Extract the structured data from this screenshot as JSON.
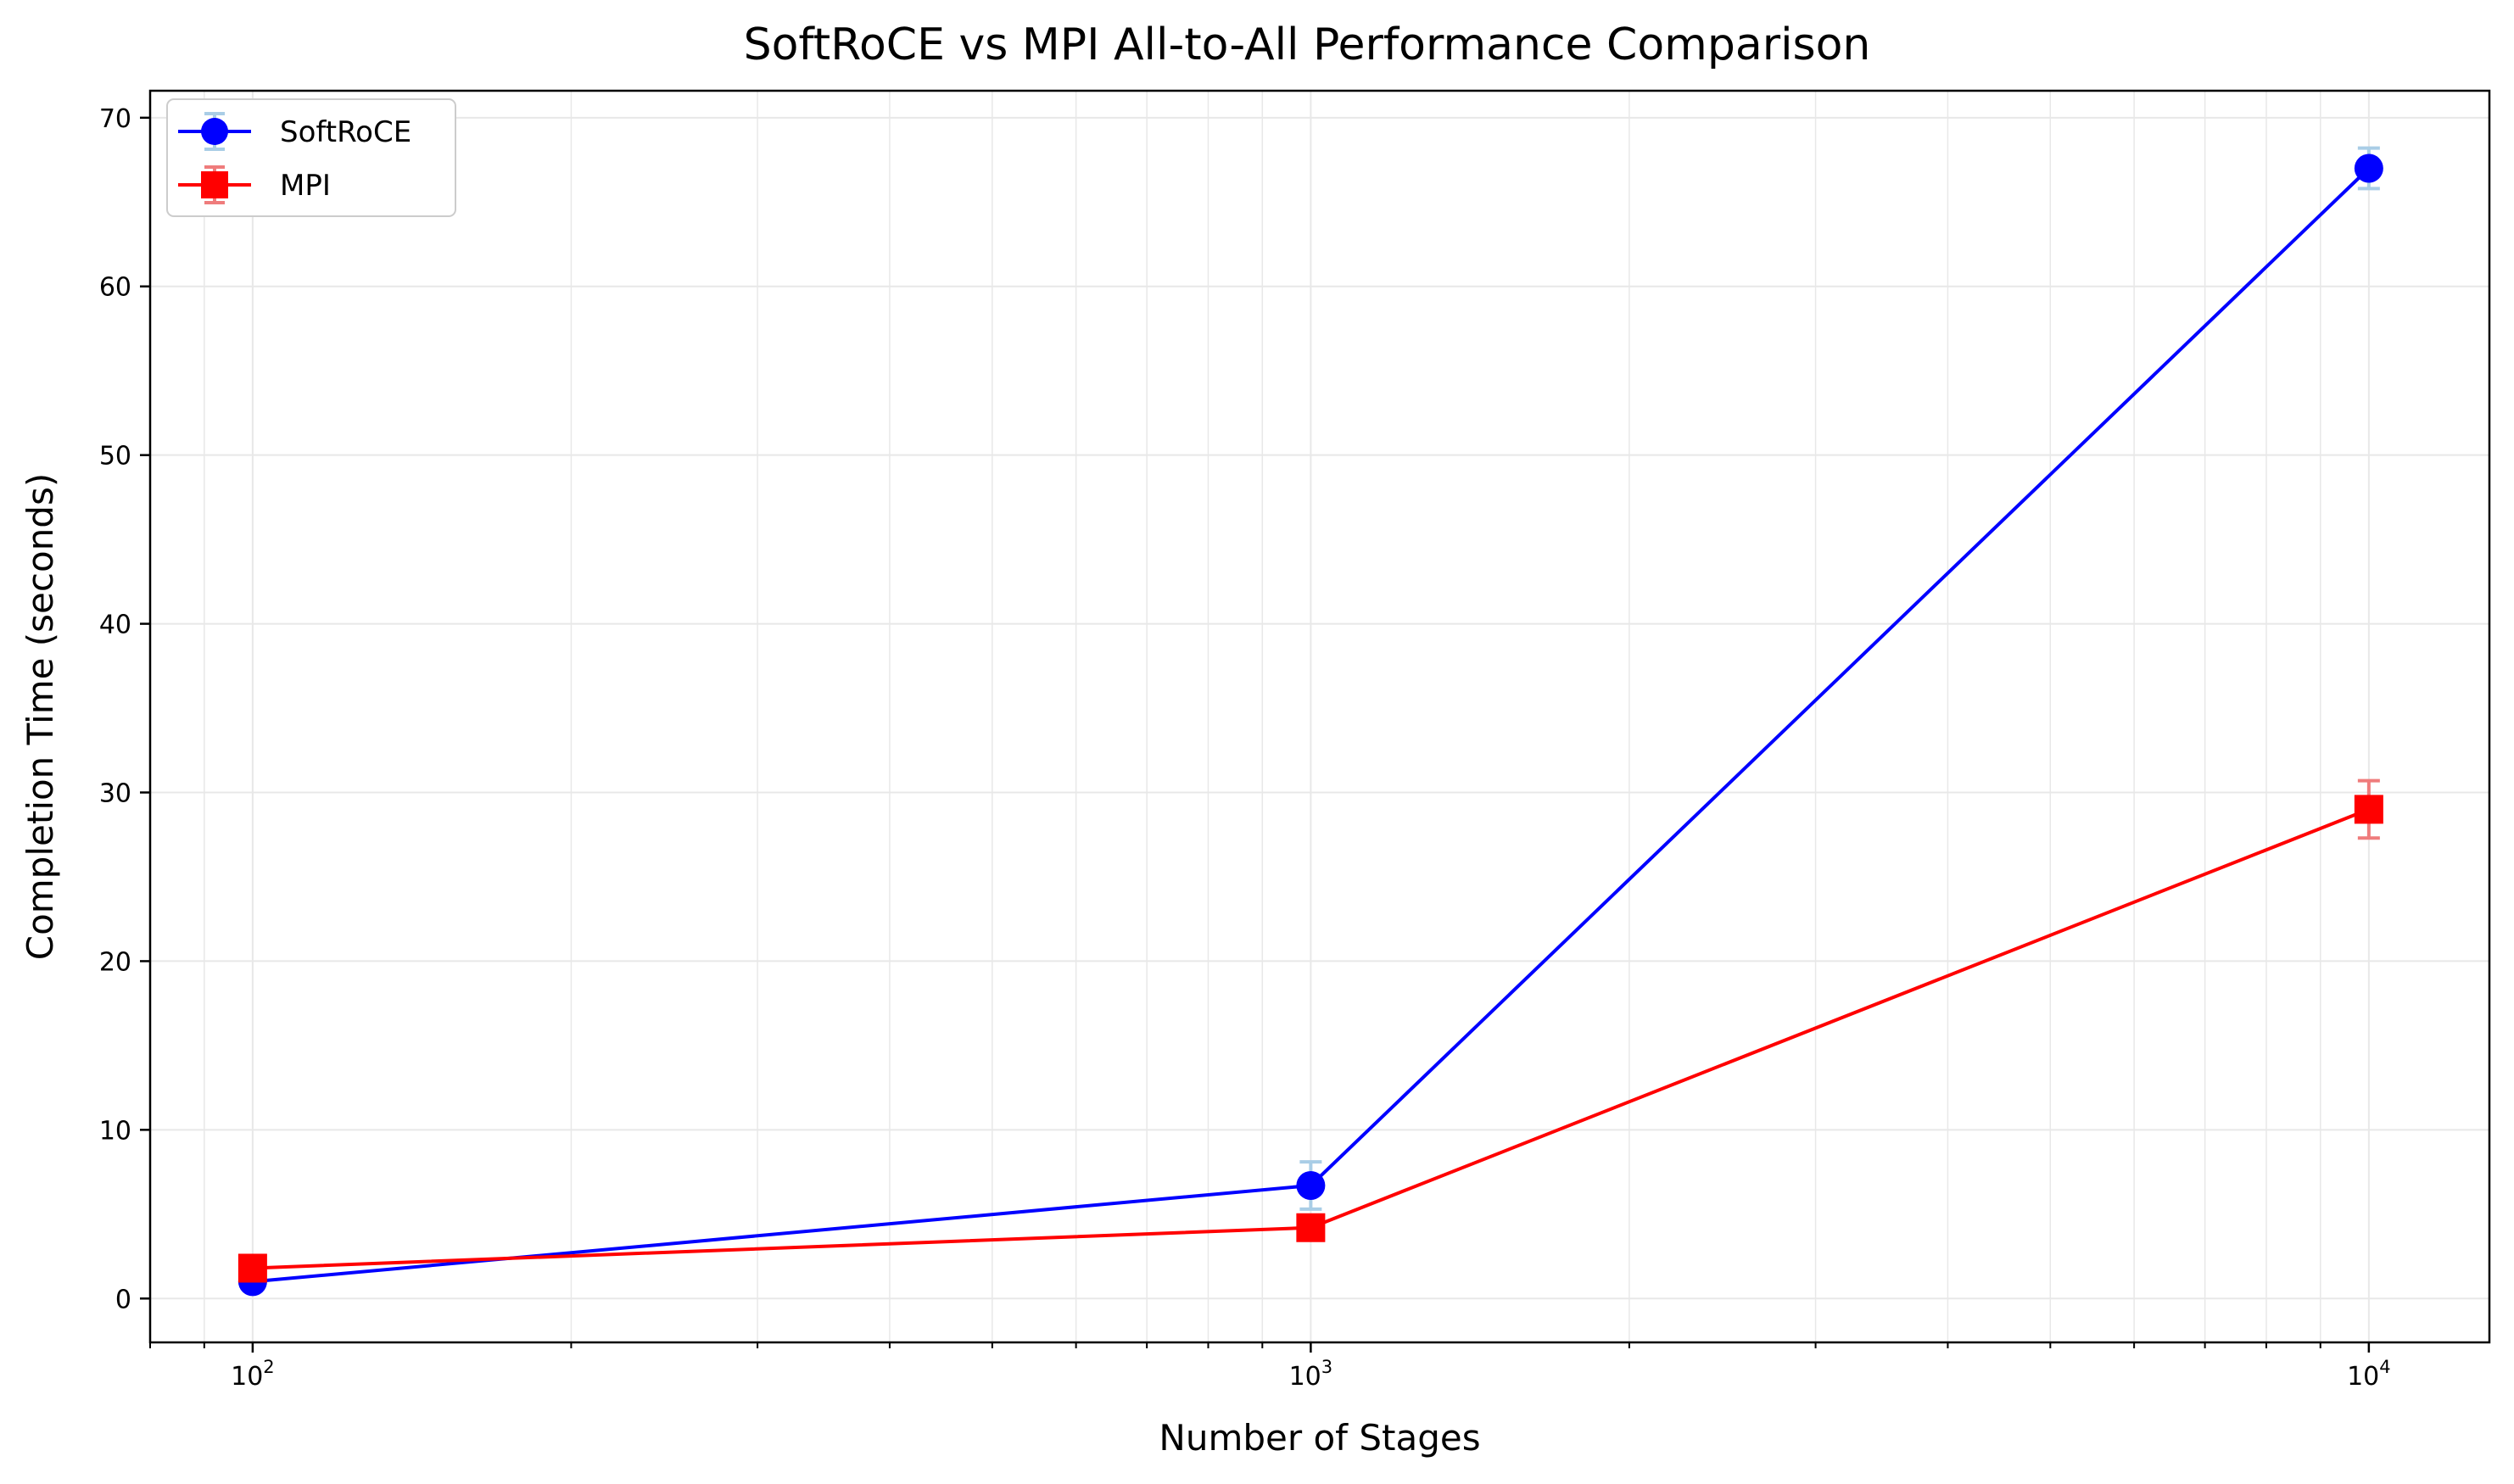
{
  "chart_data": {
    "type": "line",
    "title": "SoftRoCE vs MPI All-to-All Performance Comparison",
    "xlabel": "Number of Stages",
    "ylabel": "Completion Time (seconds)",
    "x_scale": "log",
    "x": [
      100,
      1000,
      10000
    ],
    "x_ticks": [
      {
        "value": 100,
        "base": "10",
        "exp": "2"
      },
      {
        "value": 1000,
        "base": "10",
        "exp": "3"
      },
      {
        "value": 10000,
        "base": "10",
        "exp": "4"
      }
    ],
    "xlim": [
      80,
      13000
    ],
    "ylim": [
      -2.6,
      71.6
    ],
    "y_ticks": [
      0,
      10,
      20,
      30,
      40,
      50,
      60,
      70
    ],
    "grid": true,
    "legend_position": "top-left",
    "series": [
      {
        "name": "SoftRoCE",
        "marker": "circle",
        "color": "#0000ff",
        "error_color": "#a9cde6",
        "values": [
          1.0,
          6.7,
          67.0
        ],
        "errors": [
          0.3,
          1.4,
          1.2
        ]
      },
      {
        "name": "MPI",
        "marker": "square",
        "color": "#ff0000",
        "error_color": "#ef7c7c",
        "values": [
          1.8,
          4.2,
          29.0
        ],
        "errors": [
          0.2,
          0.3,
          1.7
        ]
      }
    ]
  }
}
